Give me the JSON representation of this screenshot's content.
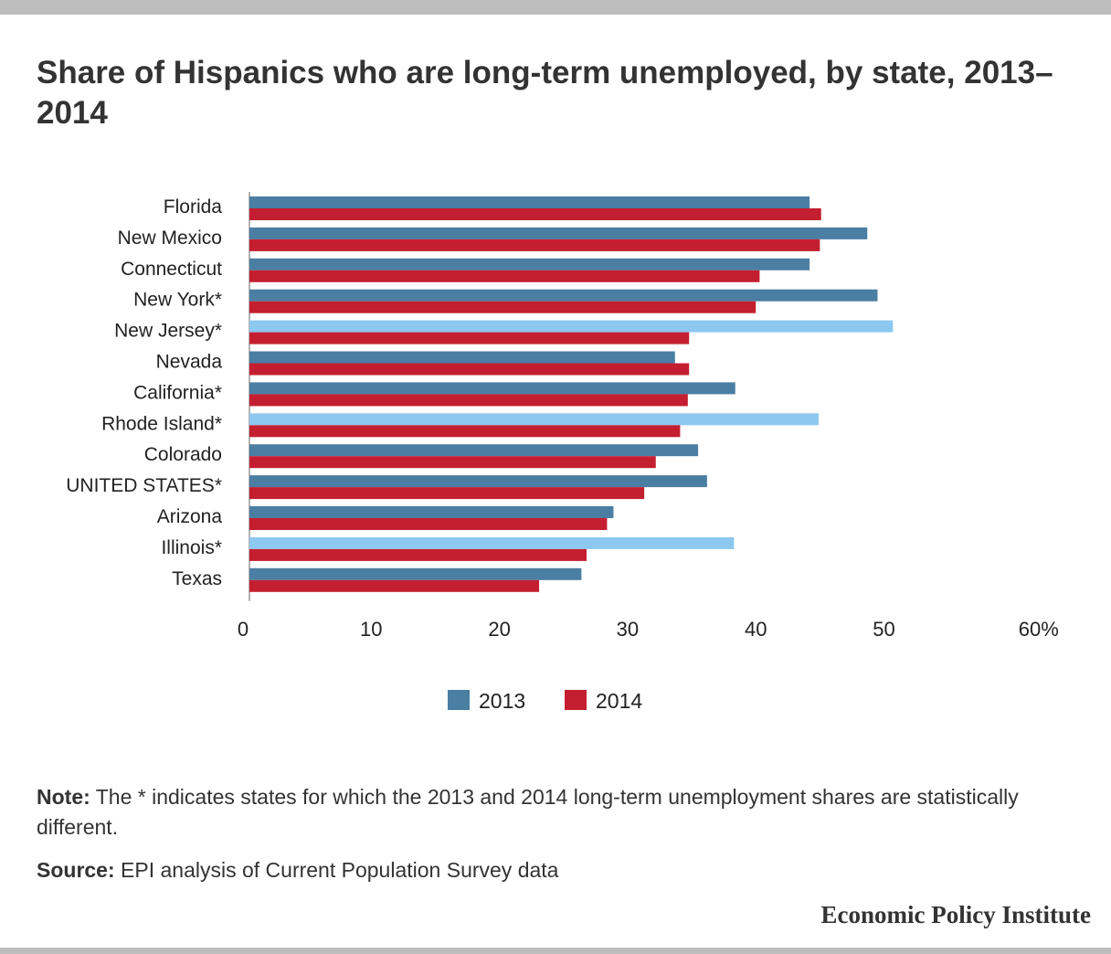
{
  "title": "Share of Hispanics who are long-term unemployed, by state, 2013–2014",
  "colors": {
    "series_2013": "#4a7ea3",
    "series_2014": "#c41f30",
    "highlight_2013": "#8dc8f0"
  },
  "note_label": "Note:",
  "note_text": " The * indicates states for which the 2013 and 2014 long-term unemployment shares are statistically different.",
  "source_label": "Source:",
  "source_text": " EPI analysis of Current Population Survey data",
  "brand": "Economic Policy Institute",
  "chart_data": {
    "type": "bar",
    "orientation": "horizontal",
    "categories": [
      "Florida",
      "New Mexico",
      "Connecticut",
      "New York*",
      "New Jersey*",
      "Nevada",
      "California*",
      "Rhode Island*",
      "Colorado",
      "UNITED STATES*",
      "Arizona",
      "Illinois*",
      "Texas"
    ],
    "series": [
      {
        "name": "2013",
        "values": [
          43.7,
          48.2,
          43.7,
          49.0,
          50.2,
          33.2,
          37.9,
          44.4,
          35.0,
          35.7,
          28.4,
          37.8,
          25.9
        ]
      },
      {
        "name": "2014",
        "values": [
          44.6,
          44.5,
          39.8,
          39.5,
          34.3,
          34.3,
          34.2,
          33.6,
          31.7,
          30.8,
          27.9,
          26.3,
          22.6
        ]
      }
    ],
    "highlighted_2013_categories": [
      "New Jersey*",
      "Rhode Island*",
      "Illinois*"
    ],
    "xlim": [
      0,
      60
    ],
    "xticks": [
      "0",
      "10",
      "20",
      "30",
      "40",
      "50",
      "60%"
    ],
    "legend_position": "bottom-center",
    "grid": false
  }
}
